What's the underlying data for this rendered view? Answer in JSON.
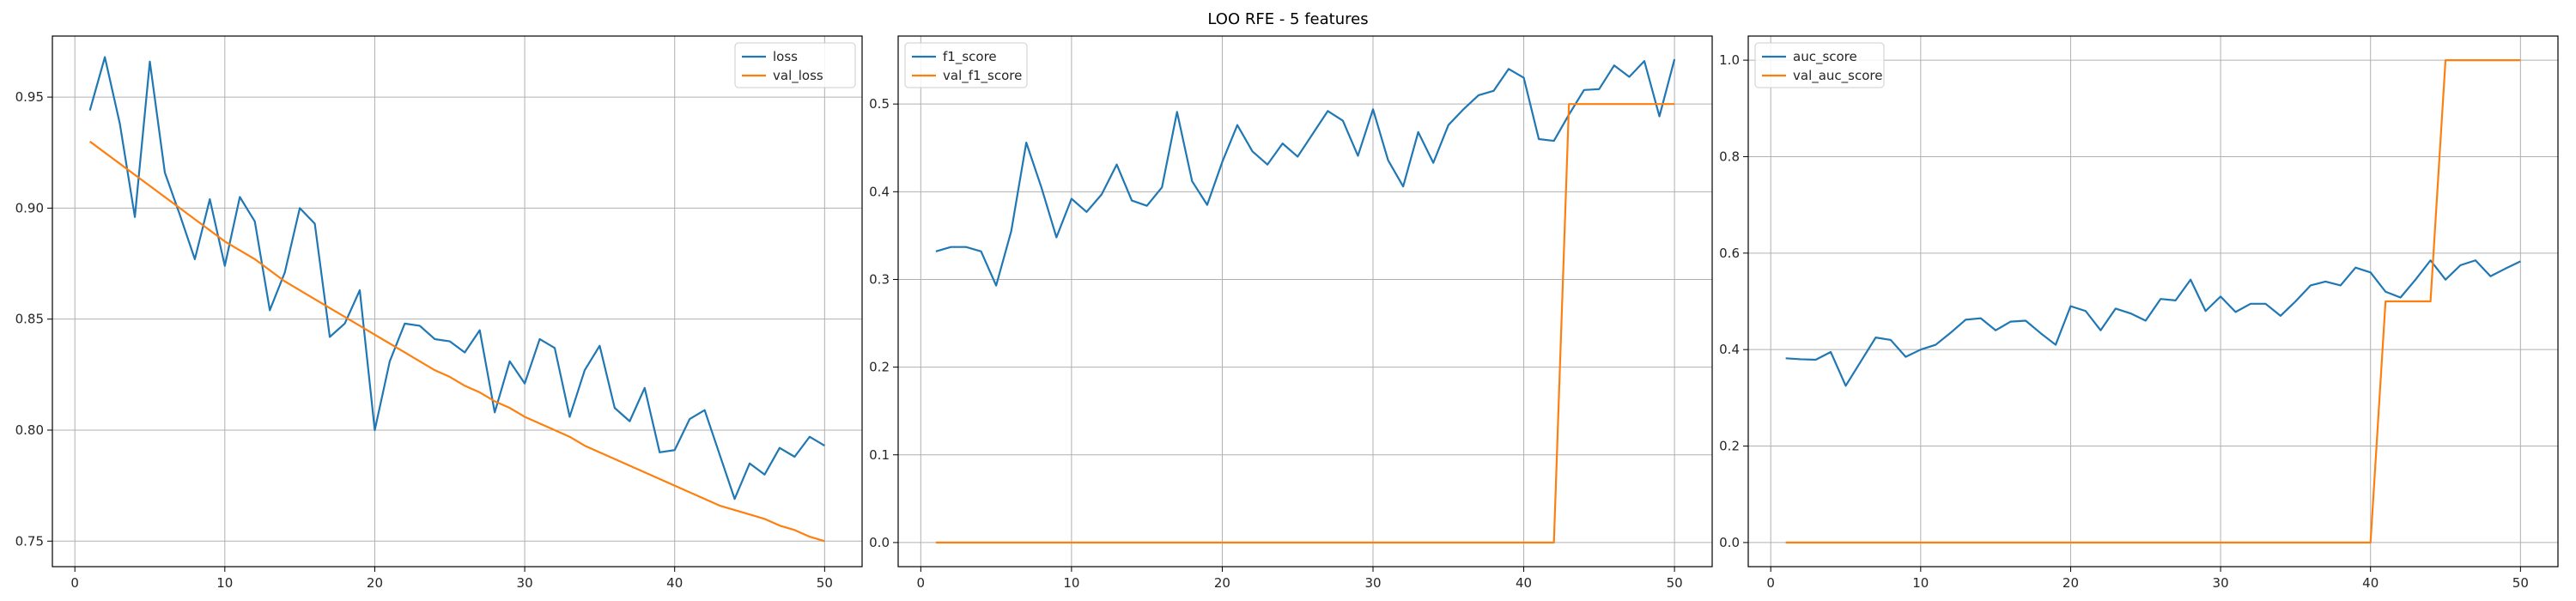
{
  "figure_title": "LOO RFE - 5 features",
  "colors": {
    "series_1": "#1f77b4",
    "series_2": "#ff7f0e",
    "grid": "#b0b0b0",
    "axis": "#000000"
  },
  "chart_data": [
    {
      "type": "line",
      "title": "",
      "xlabel": "",
      "ylabel": "",
      "xlim": [
        -1.5,
        52.5
      ],
      "ylim": [
        0.7385,
        0.9775
      ],
      "xticks": [
        0,
        10,
        20,
        30,
        40,
        50
      ],
      "yticks": [
        0.75,
        0.8,
        0.85,
        0.9,
        0.95
      ],
      "ytick_labels": [
        "0.75",
        "0.80",
        "0.85",
        "0.90",
        "0.95"
      ],
      "grid": true,
      "legend_position": "upper right",
      "x": [
        1,
        2,
        3,
        4,
        5,
        6,
        7,
        8,
        9,
        10,
        11,
        12,
        13,
        14,
        15,
        16,
        17,
        18,
        19,
        20,
        21,
        22,
        23,
        24,
        25,
        26,
        27,
        28,
        29,
        30,
        31,
        32,
        33,
        34,
        35,
        36,
        37,
        38,
        39,
        40,
        41,
        42,
        43,
        44,
        45,
        46,
        47,
        48,
        49,
        50
      ],
      "series": [
        {
          "name": "loss",
          "color": "#1f77b4",
          "values": [
            0.944,
            0.968,
            0.938,
            0.896,
            0.966,
            0.916,
            0.897,
            0.877,
            0.904,
            0.874,
            0.905,
            0.894,
            0.854,
            0.871,
            0.9,
            0.893,
            0.842,
            0.848,
            0.863,
            0.8,
            0.831,
            0.848,
            0.847,
            0.841,
            0.84,
            0.835,
            0.845,
            0.808,
            0.831,
            0.821,
            0.841,
            0.837,
            0.806,
            0.827,
            0.838,
            0.81,
            0.804,
            0.819,
            0.79,
            0.791,
            0.805,
            0.809,
            0.789,
            0.769,
            0.785,
            0.78,
            0.792,
            0.788,
            0.797,
            0.793
          ]
        },
        {
          "name": "val_loss",
          "color": "#ff7f0e",
          "values": [
            0.93,
            0.925,
            0.92,
            0.915,
            0.91,
            0.905,
            0.9,
            0.895,
            0.89,
            0.885,
            0.881,
            0.877,
            0.872,
            0.867,
            0.863,
            0.859,
            0.855,
            0.851,
            0.847,
            0.843,
            0.839,
            0.835,
            0.831,
            0.827,
            0.824,
            0.82,
            0.817,
            0.813,
            0.81,
            0.806,
            0.803,
            0.8,
            0.797,
            0.793,
            0.79,
            0.787,
            0.784,
            0.781,
            0.778,
            0.775,
            0.772,
            0.769,
            0.766,
            0.764,
            0.762,
            0.76,
            0.757,
            0.755,
            0.752,
            0.75
          ]
        }
      ]
    },
    {
      "type": "line",
      "title": "",
      "xlabel": "",
      "ylabel": "",
      "xlim": [
        -1.5,
        52.5
      ],
      "ylim": [
        -0.0275,
        0.5775
      ],
      "xticks": [
        0,
        10,
        20,
        30,
        40,
        50
      ],
      "yticks": [
        0.0,
        0.1,
        0.2,
        0.3,
        0.4,
        0.5
      ],
      "ytick_labels": [
        "0.0",
        "0.1",
        "0.2",
        "0.3",
        "0.4",
        "0.5"
      ],
      "grid": true,
      "legend_position": "upper left",
      "x": [
        1,
        2,
        3,
        4,
        5,
        6,
        7,
        8,
        9,
        10,
        11,
        12,
        13,
        14,
        15,
        16,
        17,
        18,
        19,
        20,
        21,
        22,
        23,
        24,
        25,
        26,
        27,
        28,
        29,
        30,
        31,
        32,
        33,
        34,
        35,
        36,
        37,
        38,
        39,
        40,
        41,
        42,
        43,
        44,
        45,
        46,
        47,
        48,
        49,
        50
      ],
      "series": [
        {
          "name": "f1_score",
          "color": "#1f77b4",
          "values": [
            0.332,
            0.337,
            0.337,
            0.332,
            0.293,
            0.355,
            0.456,
            0.405,
            0.348,
            0.392,
            0.377,
            0.397,
            0.431,
            0.39,
            0.384,
            0.405,
            0.491,
            0.412,
            0.385,
            0.434,
            0.476,
            0.446,
            0.431,
            0.455,
            0.44,
            0.466,
            0.492,
            0.481,
            0.441,
            0.494,
            0.436,
            0.406,
            0.468,
            0.433,
            0.476,
            0.494,
            0.51,
            0.515,
            0.54,
            0.53,
            0.46,
            0.458,
            0.488,
            0.516,
            0.517,
            0.544,
            0.531,
            0.549,
            0.486,
            0.551
          ]
        },
        {
          "name": "val_f1_score",
          "color": "#ff7f0e",
          "values": [
            0,
            0,
            0,
            0,
            0,
            0,
            0,
            0,
            0,
            0,
            0,
            0,
            0,
            0,
            0,
            0,
            0,
            0,
            0,
            0,
            0,
            0,
            0,
            0,
            0,
            0,
            0,
            0,
            0,
            0,
            0,
            0,
            0,
            0,
            0,
            0,
            0,
            0,
            0,
            0,
            0,
            0,
            0.5,
            0.5,
            0.5,
            0.5,
            0.5,
            0.5,
            0.5,
            0.5
          ]
        }
      ]
    },
    {
      "type": "line",
      "title": "",
      "xlabel": "",
      "ylabel": "",
      "xlim": [
        -1.5,
        52.5
      ],
      "ylim": [
        -0.05,
        1.05
      ],
      "xticks": [
        0,
        10,
        20,
        30,
        40,
        50
      ],
      "yticks": [
        0.0,
        0.2,
        0.4,
        0.6,
        0.8,
        1.0
      ],
      "ytick_labels": [
        "0.0",
        "0.2",
        "0.4",
        "0.6",
        "0.8",
        "1.0"
      ],
      "grid": true,
      "legend_position": "upper left",
      "x": [
        1,
        2,
        3,
        4,
        5,
        6,
        7,
        8,
        9,
        10,
        11,
        12,
        13,
        14,
        15,
        16,
        17,
        18,
        19,
        20,
        21,
        22,
        23,
        24,
        25,
        26,
        27,
        28,
        29,
        30,
        31,
        32,
        33,
        34,
        35,
        36,
        37,
        38,
        39,
        40,
        41,
        42,
        43,
        44,
        45,
        46,
        47,
        48,
        49,
        50
      ],
      "series": [
        {
          "name": "auc_score",
          "color": "#1f77b4",
          "values": [
            0.382,
            0.38,
            0.379,
            0.395,
            0.325,
            0.375,
            0.425,
            0.42,
            0.385,
            0.4,
            0.41,
            0.435,
            0.462,
            0.465,
            0.44,
            0.458,
            0.46,
            0.434,
            0.41,
            0.49,
            0.48,
            0.44,
            0.485,
            0.475,
            0.46,
            0.505,
            0.502,
            0.545,
            0.48,
            0.51,
            0.478,
            0.495,
            0.495,
            0.47,
            0.5,
            0.533,
            0.541,
            0.533,
            0.57,
            0.56,
            0.52,
            0.508,
            0.545,
            0.585,
            0.545,
            0.575,
            0.585,
            0.552,
            0.568,
            0.583
          ]
        },
        {
          "name": "val_auc_score",
          "color": "#ff7f0e",
          "values": [
            0,
            0,
            0,
            0,
            0,
            0,
            0,
            0,
            0,
            0,
            0,
            0,
            0,
            0,
            0,
            0,
            0,
            0,
            0,
            0,
            0,
            0,
            0,
            0,
            0,
            0,
            0,
            0,
            0,
            0,
            0,
            0,
            0,
            0,
            0,
            0,
            0,
            0,
            0,
            0,
            0.5,
            0.5,
            0.5,
            0.5,
            1.0,
            1.0,
            1.0,
            1.0,
            1.0,
            1.0
          ]
        }
      ]
    }
  ]
}
